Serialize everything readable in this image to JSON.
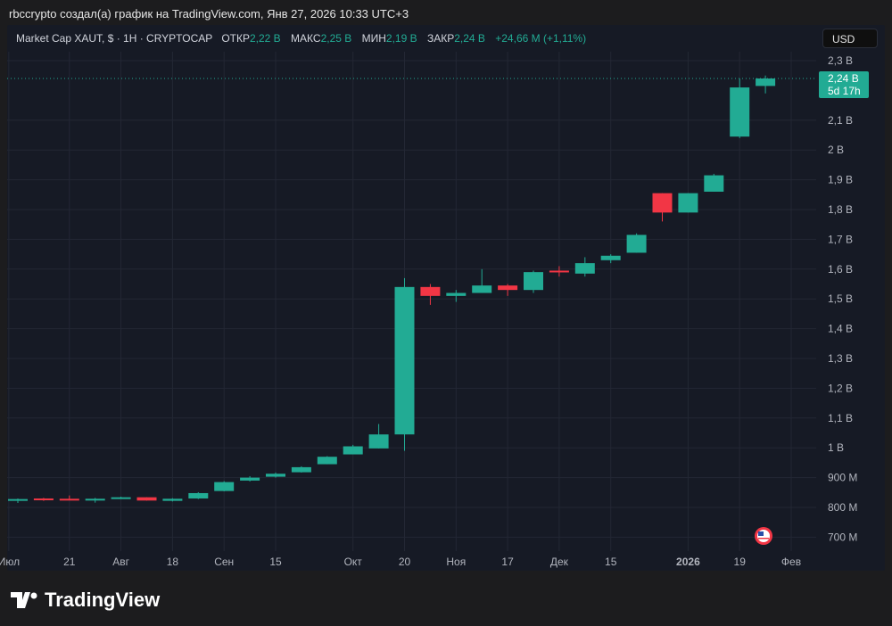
{
  "caption": "rbccrypto создал(а) график на TradingView.com, Янв 27, 2026 10:33 UTC+3",
  "legend": {
    "symbol": "Market Cap XAUT, $ · 1H · CRYPTOCAP",
    "open_label": "ОТКР",
    "open": "2,22 B",
    "high_label": "МАКС",
    "high": "2,25 B",
    "low_label": "МИН",
    "low": "2,19 B",
    "close_label": "ЗАКР",
    "close": "2,24 B",
    "change": "+24,66 M (+1,11%)"
  },
  "currency": "USD",
  "price_label": {
    "value": "2,24 B",
    "countdown": "5d 17h"
  },
  "brand": "TradingView",
  "colors": {
    "up": "#22ab94",
    "down": "#f23645",
    "background": "#161a25",
    "grid": "#232734"
  },
  "chart_data": {
    "type": "candlestick",
    "ylim": [
      0.68,
      2.33
    ],
    "y_ticks": [
      {
        "v": 2.3,
        "label": "2,3 B"
      },
      {
        "v": 2.1,
        "label": "2,1 B"
      },
      {
        "v": 2.0,
        "label": "2 B"
      },
      {
        "v": 1.9,
        "label": "1,9 B"
      },
      {
        "v": 1.8,
        "label": "1,8 B"
      },
      {
        "v": 1.7,
        "label": "1,7 B"
      },
      {
        "v": 1.6,
        "label": "1,6 B"
      },
      {
        "v": 1.5,
        "label": "1,5 B"
      },
      {
        "v": 1.4,
        "label": "1,4 B"
      },
      {
        "v": 1.3,
        "label": "1,3 B"
      },
      {
        "v": 1.2,
        "label": "1,2 B"
      },
      {
        "v": 1.1,
        "label": "1,1 B"
      },
      {
        "v": 1.0,
        "label": "1 B"
      },
      {
        "v": 0.9,
        "label": "900 M"
      },
      {
        "v": 0.8,
        "label": "800 M"
      },
      {
        "v": 0.7,
        "label": "700 M"
      }
    ],
    "x_ticks": [
      {
        "i": -0.35,
        "label": "Июл"
      },
      {
        "i": 2,
        "label": "21"
      },
      {
        "i": 4,
        "label": "Авг"
      },
      {
        "i": 6,
        "label": "18"
      },
      {
        "i": 8,
        "label": "Сен"
      },
      {
        "i": 10,
        "label": "15"
      },
      {
        "i": 13,
        "label": "Окт"
      },
      {
        "i": 15,
        "label": "20"
      },
      {
        "i": 17,
        "label": "Ноя"
      },
      {
        "i": 19,
        "label": "17"
      },
      {
        "i": 21,
        "label": "Дек"
      },
      {
        "i": 23,
        "label": "15"
      },
      {
        "i": 26,
        "label": "2026",
        "bold": true
      },
      {
        "i": 28,
        "label": "19"
      },
      {
        "i": 30,
        "label": "Фев"
      }
    ],
    "last_price": 2.24,
    "candles": [
      [
        0.822,
        0.828,
        0.83,
        0.815
      ],
      [
        0.83,
        0.826,
        0.832,
        0.822
      ],
      [
        0.829,
        0.827,
        0.84,
        0.825
      ],
      [
        0.824,
        0.829,
        0.832,
        0.816
      ],
      [
        0.83,
        0.834,
        0.836,
        0.828
      ],
      [
        0.834,
        0.823,
        0.834,
        0.823
      ],
      [
        0.822,
        0.829,
        0.831,
        0.82
      ],
      [
        0.83,
        0.848,
        0.851,
        0.828
      ],
      [
        0.855,
        0.885,
        0.888,
        0.854
      ],
      [
        0.89,
        0.9,
        0.905,
        0.887
      ],
      [
        0.903,
        0.913,
        0.917,
        0.9
      ],
      [
        0.918,
        0.935,
        0.938,
        0.917
      ],
      [
        0.945,
        0.97,
        0.972,
        0.945
      ],
      [
        0.978,
        1.005,
        1.01,
        0.978
      ],
      [
        0.998,
        1.045,
        1.08,
        0.998
      ],
      [
        1.045,
        1.54,
        1.57,
        0.99
      ],
      [
        1.54,
        1.51,
        1.55,
        1.48
      ],
      [
        1.51,
        1.52,
        1.53,
        1.49
      ],
      [
        1.52,
        1.545,
        1.6,
        1.52
      ],
      [
        1.545,
        1.53,
        1.55,
        1.51
      ],
      [
        1.53,
        1.59,
        1.595,
        1.52
      ],
      [
        1.595,
        1.59,
        1.61,
        1.575
      ],
      [
        1.585,
        1.62,
        1.64,
        1.575
      ],
      [
        1.63,
        1.645,
        1.65,
        1.62
      ],
      [
        1.655,
        1.715,
        1.72,
        1.655
      ],
      [
        1.855,
        1.79,
        1.855,
        1.76
      ],
      [
        1.79,
        1.855,
        1.855,
        1.79
      ],
      [
        1.86,
        1.915,
        1.92,
        1.86
      ],
      [
        2.045,
        2.21,
        2.24,
        2.04
      ],
      [
        2.215,
        2.24,
        2.25,
        2.19
      ]
    ]
  }
}
